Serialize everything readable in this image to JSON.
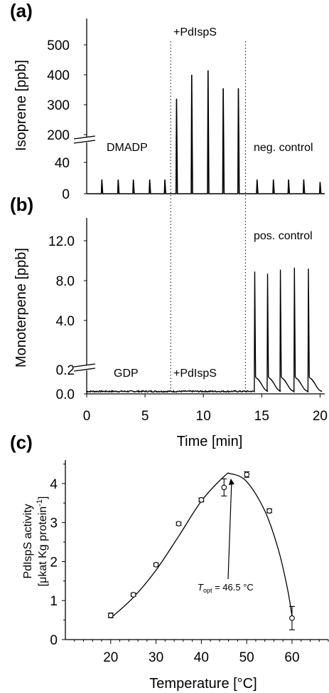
{
  "chart_data": [
    {
      "panel": "(a)",
      "type": "line",
      "ylabel": "Isoprene [ppb]",
      "xlabel": "",
      "y_ticks": [
        "0",
        "40",
        "200",
        "300",
        "400",
        "500"
      ],
      "y_axis_break": "between 40 and 200",
      "annotations": [
        "DMADP",
        "+PdIspS",
        "neg. control"
      ],
      "divider_times": [
        7.2,
        13.6
      ],
      "peaks": [
        {
          "t": 1.3,
          "value": 18
        },
        {
          "t": 2.7,
          "value": 18
        },
        {
          "t": 4.0,
          "value": 18
        },
        {
          "t": 5.4,
          "value": 18
        },
        {
          "t": 6.7,
          "value": 18
        },
        {
          "t": 7.7,
          "value": 320
        },
        {
          "t": 9.0,
          "value": 400
        },
        {
          "t": 10.4,
          "value": 415
        },
        {
          "t": 11.7,
          "value": 355
        },
        {
          "t": 13.0,
          "value": 355
        },
        {
          "t": 14.6,
          "value": 18
        },
        {
          "t": 16.0,
          "value": 18
        },
        {
          "t": 17.3,
          "value": 18
        },
        {
          "t": 18.6,
          "value": 18
        },
        {
          "t": 20.0,
          "value": 15
        }
      ]
    },
    {
      "panel": "(b)",
      "type": "line",
      "ylabel": "Monoterpene [ppb]",
      "xlabel": "Time [min]",
      "x_ticks": [
        "0",
        "5",
        "10",
        "15",
        "20"
      ],
      "xlim": [
        0,
        20.4
      ],
      "y_ticks": [
        "0.0",
        "0.2",
        "4.0",
        "8.0",
        "12.0"
      ],
      "y_axis_break": "between 0.2 and 4.0",
      "annotations": [
        "GDP",
        "+PdIspS",
        "pos. control"
      ],
      "divider_times": [
        7.2,
        13.6
      ],
      "peaks": [
        {
          "t": 14.4,
          "value": 8.9
        },
        {
          "t": 15.5,
          "value": 8.7
        },
        {
          "t": 16.6,
          "value": 9.1
        },
        {
          "t": 17.8,
          "value": 9.3
        },
        {
          "t": 19.0,
          "value": 9.2
        }
      ]
    },
    {
      "panel": "(c)",
      "type": "scatter",
      "ylabel": "PdIspS activity",
      "ylabel_line2": "[μkat Kg protein",
      "ylabel_superscript": "-1",
      "ylabel_close": "]",
      "xlabel": "Temperature [°C]",
      "x_ticks": [
        "20",
        "30",
        "40",
        "50",
        "60"
      ],
      "xlim": [
        10,
        68
      ],
      "y_ticks": [
        "0",
        "1",
        "2",
        "3",
        "4"
      ],
      "ylim": [
        0,
        4.6
      ],
      "points": [
        {
          "x": 20,
          "y": 0.62,
          "err": 0.06
        },
        {
          "x": 25,
          "y": 1.15,
          "err": 0.04
        },
        {
          "x": 30,
          "y": 1.92,
          "err": 0.04
        },
        {
          "x": 35,
          "y": 2.97,
          "err": 0.04
        },
        {
          "x": 40,
          "y": 3.58,
          "err": 0.05
        },
        {
          "x": 45,
          "y": 3.9,
          "err": 0.22
        },
        {
          "x": 50,
          "y": 4.23,
          "err": 0.07
        },
        {
          "x": 55,
          "y": 3.3,
          "err": 0.05
        },
        {
          "x": 60,
          "y": 0.55,
          "err": 0.3
        }
      ],
      "fit_curve": [
        [
          20,
          0.55
        ],
        [
          25,
          1.08
        ],
        [
          30,
          1.78
        ],
        [
          35,
          2.65
        ],
        [
          40,
          3.55
        ],
        [
          45,
          4.18
        ],
        [
          46.5,
          4.25
        ],
        [
          50,
          4.05
        ],
        [
          54,
          3.3
        ],
        [
          57,
          2.3
        ],
        [
          59,
          1.3
        ],
        [
          60,
          0.6
        ]
      ],
      "annotation": {
        "text_T": "T",
        "text_sub": "opt",
        "text_rest": " = 46.5 °C",
        "point_x": 46.5,
        "point_y": 4.2
      }
    }
  ]
}
